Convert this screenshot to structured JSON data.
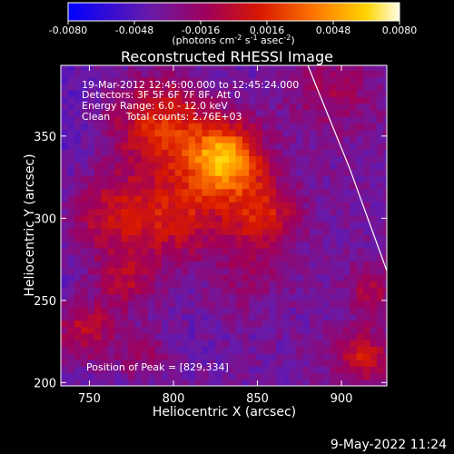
{
  "chart_data": {
    "type": "heatmap",
    "title": "Reconstructed RHESSI Image",
    "xlabel": "Heliocentric X (arcsec)",
    "ylabel": "Heliocentric Y (arcsec)",
    "xlim": [
      733,
      927
    ],
    "ylim": [
      198,
      393
    ],
    "x_ticks": [
      750,
      800,
      850,
      900
    ],
    "y_ticks": [
      200,
      250,
      300,
      350
    ],
    "colorbar": {
      "range": [
        -0.008,
        0.008
      ],
      "tick_labels": [
        "-0.0080",
        "-0.0048",
        "-0.0016",
        "0.0016",
        "0.0048",
        "0.0080"
      ],
      "tick_values": [
        -0.008,
        -0.0048,
        -0.0016,
        0.0016,
        0.0048,
        0.008
      ],
      "unit_label": "(photons cm",
      "unit_sup1": "-2",
      "unit_mid": " s",
      "unit_sup2": "-1",
      "unit_mid2": " asec",
      "unit_sup3": "-2",
      "unit_end": ")"
    },
    "annotations": [
      "19-Mar-2012 12:45:00.000 to 12:45:24.000",
      "Detectors: 3F 5F 6F 7F 8F, Att 0",
      "Energy Range: 6.0 - 12.0 keV",
      "Clean     Total counts: 2.76E+03"
    ],
    "peak_label": "Position of Peak = [829,334]",
    "peak": [
      829,
      334
    ],
    "limb_points": [
      [
        880,
        393
      ],
      [
        905,
        330
      ],
      [
        927,
        268
      ]
    ]
  },
  "footer": {
    "date": "9-May-2022 11:24"
  }
}
